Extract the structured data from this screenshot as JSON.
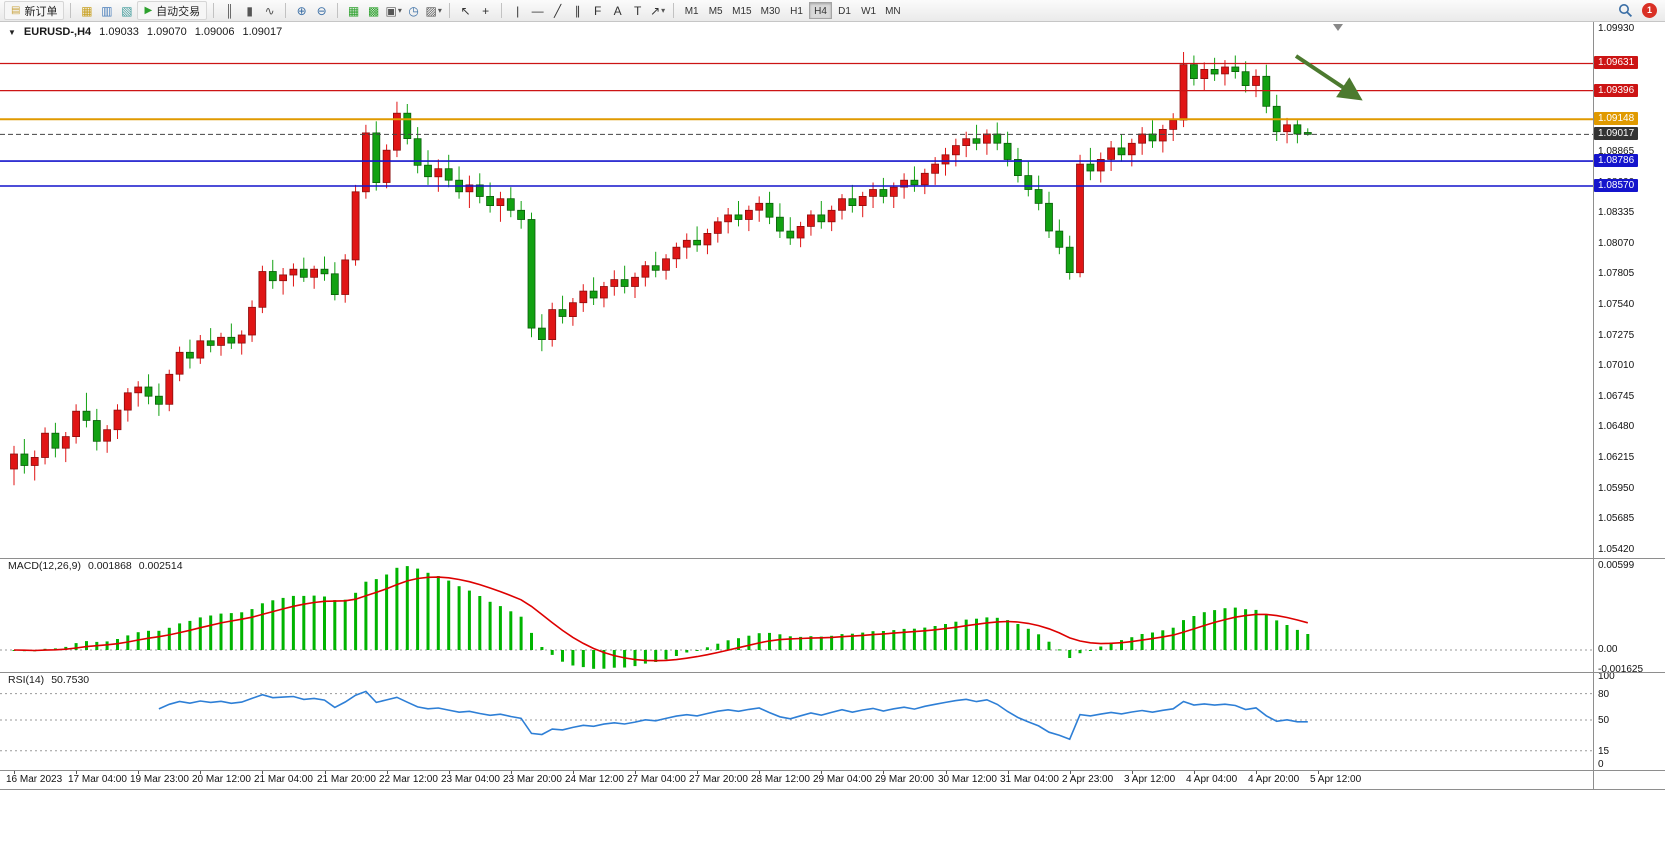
{
  "toolbar": {
    "caret_glyph": "▾",
    "notification_count": "1",
    "timeframes": [
      "M1",
      "M5",
      "M15",
      "M30",
      "H1",
      "H4",
      "D1",
      "W1",
      "MN"
    ],
    "active_timeframe": "H4",
    "groups": [
      [
        {
          "kind": "button",
          "name": "new-order-button",
          "label": "新订单",
          "glyph": "▤",
          "glyph_color": "#c8a23c"
        }
      ],
      [
        {
          "kind": "icon",
          "name": "market-watch-icon",
          "glyph": "▦",
          "color": "#c8a020"
        },
        {
          "kind": "icon",
          "name": "data-window-icon",
          "glyph": "▥",
          "color": "#4a7ebb"
        },
        {
          "kind": "icon",
          "name": "terminal-icon",
          "glyph": "▧",
          "color": "#3f9b9b"
        },
        {
          "kind": "button",
          "name": "autotrading-button",
          "label": "自动交易",
          "glyph": "▶",
          "glyph_color": "#2da12d"
        }
      ],
      [
        {
          "kind": "icon",
          "name": "bar-chart-icon",
          "glyph": "║",
          "color": "#555555"
        },
        {
          "kind": "icon",
          "name": "candlestick-chart-icon",
          "glyph": "▮",
          "color": "#555555"
        },
        {
          "kind": "icon",
          "name": "line-chart-icon",
          "glyph": "∿",
          "color": "#555555"
        }
      ],
      [
        {
          "kind": "icon",
          "name": "zoom-in-icon",
          "glyph": "⊕",
          "color": "#3a6ea5"
        },
        {
          "kind": "icon",
          "name": "zoom-out-icon",
          "glyph": "⊖",
          "color": "#3a6ea5"
        }
      ],
      [
        {
          "kind": "icon",
          "name": "tile-windows-icon",
          "glyph": "▦",
          "color": "#2da12d"
        },
        {
          "kind": "icon",
          "name": "cascade-windows-icon",
          "glyph": "▩",
          "color": "#2da12d"
        },
        {
          "kind": "dropdown",
          "name": "new-chart-button",
          "glyph": "▣",
          "color": "#555555"
        },
        {
          "kind": "icon",
          "name": "clock-icon",
          "glyph": "◷",
          "color": "#3a6ea5"
        },
        {
          "kind": "dropdown",
          "name": "indicators-button",
          "glyph": "▨",
          "color": "#555555"
        }
      ],
      [
        {
          "kind": "icon",
          "name": "cursor-icon",
          "glyph": "↖",
          "color": "#333333"
        },
        {
          "kind": "icon",
          "name": "crosshair-icon",
          "glyph": "+",
          "color": "#333333"
        }
      ],
      [
        {
          "kind": "icon",
          "name": "vertical-line-icon",
          "glyph": "|",
          "color": "#333333"
        },
        {
          "kind": "icon",
          "name": "horizontal-line-icon",
          "glyph": "—",
          "color": "#333333"
        },
        {
          "kind": "icon",
          "name": "trendline-icon",
          "glyph": "╱",
          "color": "#333333"
        },
        {
          "kind": "icon",
          "name": "channel-icon",
          "glyph": "∥",
          "color": "#333333"
        },
        {
          "kind": "icon",
          "name": "fibonacci-icon",
          "glyph": "F",
          "color": "#333333"
        },
        {
          "kind": "icon",
          "name": "text-icon",
          "glyph": "A",
          "color": "#333333"
        },
        {
          "kind": "icon",
          "name": "label-icon",
          "glyph": "T",
          "color": "#333333"
        },
        {
          "kind": "dropdown",
          "name": "shapes-button",
          "glyph": "↗",
          "color": "#333333"
        }
      ]
    ]
  },
  "chart": {
    "one_click_glyph": "▼",
    "symbol_header": "EURUSD-,H4",
    "open": "1.09033",
    "high": "1.09070",
    "low": "1.09006",
    "close": "1.09017"
  },
  "price_axis": {
    "ticks": [
      "1.09930",
      "1.08865",
      "1.08600",
      "1.08335",
      "1.08070",
      "1.07805",
      "1.07540",
      "1.07275",
      "1.07010",
      "1.06745",
      "1.06480",
      "1.06215",
      "1.05950",
      "1.05685",
      "1.05420"
    ]
  },
  "hlines": [
    {
      "price": "1.09631",
      "value": 1.09631,
      "color": "#cc1414",
      "dash": "",
      "width": 1.3
    },
    {
      "price": "1.09396",
      "value": 1.09396,
      "color": "#cc1414",
      "dash": "",
      "width": 1.3
    },
    {
      "price": "1.09148",
      "value": 1.09148,
      "color": "#e09a00",
      "dash": "",
      "width": 2
    },
    {
      "price": "1.09017",
      "value": 1.09017,
      "color": "#444444",
      "dash": "5,3",
      "width": 1,
      "tag_bg": "#333333"
    },
    {
      "price": "1.08786",
      "value": 1.08786,
      "color": "#1414cc",
      "dash": "",
      "width": 1.6
    },
    {
      "price": "1.08570",
      "value": 1.0857,
      "color": "#1414cc",
      "dash": "",
      "width": 1.6
    }
  ],
  "macd": {
    "label": "MACD(12,26,9)",
    "value_main": "0.001868",
    "value_signal": "0.002514",
    "axis": [
      {
        "label": "0.00599",
        "value": 0.00599
      },
      {
        "label": "0.00",
        "value": 0
      },
      {
        "label": "-0.001625",
        "value": -0.001625
      }
    ]
  },
  "rsi": {
    "label": "RSI(14)",
    "value": "50.7530",
    "levels": [
      80,
      50,
      15
    ],
    "axis": [
      {
        "label": "100",
        "value": 100
      },
      {
        "label": "80",
        "value": 80
      },
      {
        "label": "50",
        "value": 50
      },
      {
        "label": "15",
        "value": 15
      },
      {
        "label": "0",
        "value": 0
      }
    ]
  },
  "time_labels": [
    "16 Mar 2023",
    "17 Mar 04:00",
    "19 Mar 23:00",
    "20 Mar 12:00",
    "21 Mar 04:00",
    "21 Mar 20:00",
    "22 Mar 12:00",
    "23 Mar 04:00",
    "23 Mar 20:00",
    "24 Mar 12:00",
    "27 Mar 04:00",
    "27 Mar 20:00",
    "28 Mar 12:00",
    "29 Mar 04:00",
    "29 Mar 20:00",
    "30 Mar 12:00",
    "31 Mar 04:00",
    "2 Apr 23:00",
    "3 Apr 12:00",
    "4 Apr 04:00",
    "4 Apr 20:00",
    "5 Apr 12:00"
  ],
  "colors": {
    "bull": "#e01515",
    "bull_border": "#8a0d0d",
    "bear": "#12a112",
    "bear_border": "#0a5c0a",
    "macd_hist": "#00b400",
    "macd_signal": "#dd0000",
    "rsi_line": "#2e7fd6",
    "level_line": "#9a9a9a",
    "arrow": "#4c7a2f",
    "shift_marker": "#888888"
  },
  "chart_data": {
    "type": "candlestick",
    "symbol": "EURUSD",
    "timeframe": "H4",
    "indicators": [
      "MACD(12,26,9)",
      "RSI(14)"
    ],
    "price_range": [
      1.0542,
      1.0993
    ],
    "candles": [
      [
        1.0612,
        1.0632,
        1.0598,
        1.0625
      ],
      [
        1.0625,
        1.0638,
        1.0608,
        1.0615
      ],
      [
        1.0615,
        1.0628,
        1.0602,
        1.0622
      ],
      [
        1.0622,
        1.0648,
        1.0616,
        1.0643
      ],
      [
        1.0643,
        1.0652,
        1.0622,
        1.063
      ],
      [
        1.063,
        1.0644,
        1.0618,
        1.064
      ],
      [
        1.064,
        1.0668,
        1.0634,
        1.0662
      ],
      [
        1.0662,
        1.0678,
        1.0648,
        1.0654
      ],
      [
        1.0654,
        1.0664,
        1.0628,
        1.0636
      ],
      [
        1.0636,
        1.065,
        1.0626,
        1.0646
      ],
      [
        1.0646,
        1.0668,
        1.0638,
        1.0663
      ],
      [
        1.0663,
        1.0682,
        1.0653,
        1.0678
      ],
      [
        1.0678,
        1.0688,
        1.0666,
        1.0683
      ],
      [
        1.0683,
        1.0694,
        1.0668,
        1.0675
      ],
      [
        1.0675,
        1.0686,
        1.0658,
        1.0668
      ],
      [
        1.0668,
        1.0698,
        1.0662,
        1.0694
      ],
      [
        1.0694,
        1.0718,
        1.0688,
        1.0713
      ],
      [
        1.0713,
        1.0724,
        1.0699,
        1.0708
      ],
      [
        1.0708,
        1.0728,
        1.0703,
        1.0723
      ],
      [
        1.0723,
        1.0734,
        1.0713,
        1.0719
      ],
      [
        1.0719,
        1.073,
        1.071,
        1.0726
      ],
      [
        1.0726,
        1.0738,
        1.0716,
        1.0721
      ],
      [
        1.0721,
        1.0732,
        1.0711,
        1.0728
      ],
      [
        1.0728,
        1.0758,
        1.0722,
        1.0752
      ],
      [
        1.0752,
        1.0788,
        1.0747,
        1.0783
      ],
      [
        1.0783,
        1.0793,
        1.0768,
        1.0775
      ],
      [
        1.0775,
        1.0786,
        1.0763,
        1.078
      ],
      [
        1.078,
        1.079,
        1.077,
        1.0785
      ],
      [
        1.0785,
        1.0795,
        1.0774,
        1.0778
      ],
      [
        1.0778,
        1.0788,
        1.0768,
        1.0785
      ],
      [
        1.0785,
        1.0796,
        1.0775,
        1.0781
      ],
      [
        1.0781,
        1.0791,
        1.0758,
        1.0763
      ],
      [
        1.0763,
        1.0798,
        1.0756,
        1.0793
      ],
      [
        1.0793,
        1.0858,
        1.0788,
        1.0852
      ],
      [
        1.0852,
        1.091,
        1.0846,
        1.0903
      ],
      [
        1.0903,
        1.0913,
        1.0853,
        1.086
      ],
      [
        1.086,
        1.0893,
        1.0855,
        1.0888
      ],
      [
        1.0888,
        1.093,
        1.0882,
        1.092
      ],
      [
        1.092,
        1.0928,
        1.0893,
        1.0898
      ],
      [
        1.0898,
        1.0908,
        1.0868,
        1.0875
      ],
      [
        1.0875,
        1.0888,
        1.0858,
        1.0865
      ],
      [
        1.0865,
        1.088,
        1.0852,
        1.0872
      ],
      [
        1.0872,
        1.0884,
        1.0856,
        1.0862
      ],
      [
        1.0862,
        1.0874,
        1.0846,
        1.0852
      ],
      [
        1.0852,
        1.0866,
        1.0838,
        1.0858
      ],
      [
        1.0858,
        1.0868,
        1.0842,
        1.0848
      ],
      [
        1.0848,
        1.086,
        1.0834,
        1.084
      ],
      [
        1.084,
        1.0852,
        1.0826,
        1.0846
      ],
      [
        1.0846,
        1.0856,
        1.083,
        1.0836
      ],
      [
        1.0836,
        1.0844,
        1.082,
        1.0828
      ],
      [
        1.0828,
        1.0834,
        1.0726,
        1.0734
      ],
      [
        1.0734,
        1.0746,
        1.0714,
        1.0724
      ],
      [
        1.0724,
        1.0756,
        1.0718,
        1.075
      ],
      [
        1.075,
        1.0762,
        1.0738,
        1.0744
      ],
      [
        1.0744,
        1.076,
        1.0736,
        1.0756
      ],
      [
        1.0756,
        1.0772,
        1.0748,
        1.0766
      ],
      [
        1.0766,
        1.0778,
        1.0754,
        1.076
      ],
      [
        1.076,
        1.0774,
        1.0752,
        1.077
      ],
      [
        1.077,
        1.0784,
        1.0762,
        1.0776
      ],
      [
        1.0776,
        1.0788,
        1.0764,
        1.077
      ],
      [
        1.077,
        1.0782,
        1.076,
        1.0778
      ],
      [
        1.0778,
        1.0792,
        1.077,
        1.0788
      ],
      [
        1.0788,
        1.08,
        1.0778,
        1.0784
      ],
      [
        1.0784,
        1.0798,
        1.0776,
        1.0794
      ],
      [
        1.0794,
        1.0808,
        1.0786,
        1.0804
      ],
      [
        1.0804,
        1.0816,
        1.0794,
        1.081
      ],
      [
        1.081,
        1.0822,
        1.08,
        1.0806
      ],
      [
        1.0806,
        1.082,
        1.0798,
        1.0816
      ],
      [
        1.0816,
        1.083,
        1.0808,
        1.0826
      ],
      [
        1.0826,
        1.0838,
        1.0816,
        1.0832
      ],
      [
        1.0832,
        1.0844,
        1.0822,
        1.0828
      ],
      [
        1.0828,
        1.084,
        1.0818,
        1.0836
      ],
      [
        1.0836,
        1.0848,
        1.0826,
        1.0842
      ],
      [
        1.0842,
        1.0852,
        1.0824,
        1.083
      ],
      [
        1.083,
        1.0842,
        1.0812,
        1.0818
      ],
      [
        1.0818,
        1.083,
        1.0806,
        1.0812
      ],
      [
        1.0812,
        1.0826,
        1.0804,
        1.0822
      ],
      [
        1.0822,
        1.0836,
        1.0814,
        1.0832
      ],
      [
        1.0832,
        1.0844,
        1.082,
        1.0826
      ],
      [
        1.0826,
        1.084,
        1.0818,
        1.0836
      ],
      [
        1.0836,
        1.085,
        1.0828,
        1.0846
      ],
      [
        1.0846,
        1.0858,
        1.0834,
        1.084
      ],
      [
        1.084,
        1.0852,
        1.083,
        1.0848
      ],
      [
        1.0848,
        1.086,
        1.0838,
        1.0854
      ],
      [
        1.0854,
        1.0864,
        1.0842,
        1.0848
      ],
      [
        1.0848,
        1.086,
        1.0838,
        1.0856
      ],
      [
        1.0856,
        1.0868,
        1.0846,
        1.0862
      ],
      [
        1.0862,
        1.0874,
        1.0852,
        1.0858
      ],
      [
        1.0858,
        1.0872,
        1.085,
        1.0868
      ],
      [
        1.0868,
        1.0882,
        1.0858,
        1.0876
      ],
      [
        1.0876,
        1.089,
        1.0866,
        1.0884
      ],
      [
        1.0884,
        1.0898,
        1.0874,
        1.0892
      ],
      [
        1.0892,
        1.0904,
        1.0882,
        1.0898
      ],
      [
        1.0898,
        1.091,
        1.0888,
        1.0894
      ],
      [
        1.0894,
        1.0906,
        1.0884,
        1.0902
      ],
      [
        1.0902,
        1.0912,
        1.0888,
        1.0894
      ],
      [
        1.0894,
        1.0904,
        1.0874,
        1.088
      ],
      [
        1.088,
        1.089,
        1.086,
        1.0866
      ],
      [
        1.0866,
        1.0878,
        1.0848,
        1.0854
      ],
      [
        1.0854,
        1.0866,
        1.0836,
        1.0842
      ],
      [
        1.0842,
        1.0852,
        1.0812,
        1.0818
      ],
      [
        1.0818,
        1.0828,
        1.0798,
        1.0804
      ],
      [
        1.0804,
        1.0814,
        1.0776,
        1.0782
      ],
      [
        1.0782,
        1.0884,
        1.0778,
        1.0876
      ],
      [
        1.0876,
        1.089,
        1.0862,
        1.087
      ],
      [
        1.087,
        1.0886,
        1.086,
        1.088
      ],
      [
        1.088,
        1.0896,
        1.087,
        1.089
      ],
      [
        1.089,
        1.0902,
        1.0878,
        1.0884
      ],
      [
        1.0884,
        1.0898,
        1.0874,
        1.0894
      ],
      [
        1.0894,
        1.0908,
        1.0884,
        1.0902
      ],
      [
        1.0902,
        1.0914,
        1.089,
        1.0896
      ],
      [
        1.0896,
        1.091,
        1.0886,
        1.0906
      ],
      [
        1.0906,
        1.092,
        1.0896,
        1.0914
      ],
      [
        1.0914,
        1.0973,
        1.0908,
        1.0962
      ],
      [
        1.0962,
        1.097,
        1.0944,
        1.095
      ],
      [
        1.095,
        1.0964,
        1.094,
        1.0958
      ],
      [
        1.0958,
        1.0968,
        1.0948,
        1.0954
      ],
      [
        1.0954,
        1.0966,
        1.0944,
        1.096
      ],
      [
        1.096,
        1.097,
        1.095,
        1.0956
      ],
      [
        1.0956,
        1.0965,
        1.0938,
        1.0944
      ],
      [
        1.0944,
        1.0958,
        1.0934,
        1.0952
      ],
      [
        1.0952,
        1.0962,
        1.092,
        1.0926
      ],
      [
        1.0926,
        1.0936,
        1.0896,
        1.0904
      ],
      [
        1.0904,
        1.0916,
        1.0894,
        1.091
      ],
      [
        1.091,
        1.0914,
        1.0894,
        1.0902
      ],
      [
        1.09033,
        1.0907,
        1.09006,
        1.09017
      ]
    ]
  }
}
